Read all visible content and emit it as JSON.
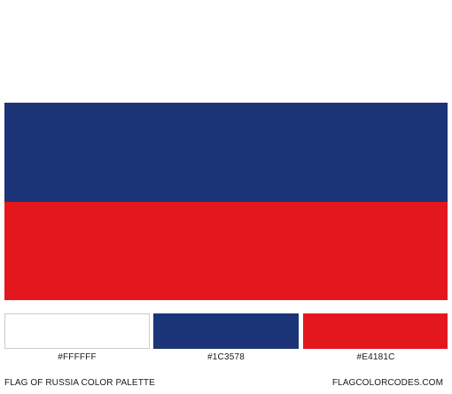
{
  "flag": {
    "stripes": [
      {
        "color": "#FFFFFF"
      },
      {
        "color": "#1C3578"
      },
      {
        "color": "#E4181C"
      }
    ]
  },
  "palette": [
    {
      "hex": "#FFFFFF",
      "color": "#FFFFFF"
    },
    {
      "hex": "#1C3578",
      "color": "#1C3578"
    },
    {
      "hex": "#E4181C",
      "color": "#E4181C"
    }
  ],
  "footer": {
    "caption": "FLAG OF RUSSIA COLOR PALETTE",
    "site": "FLAGCOLORCODES.COM"
  }
}
